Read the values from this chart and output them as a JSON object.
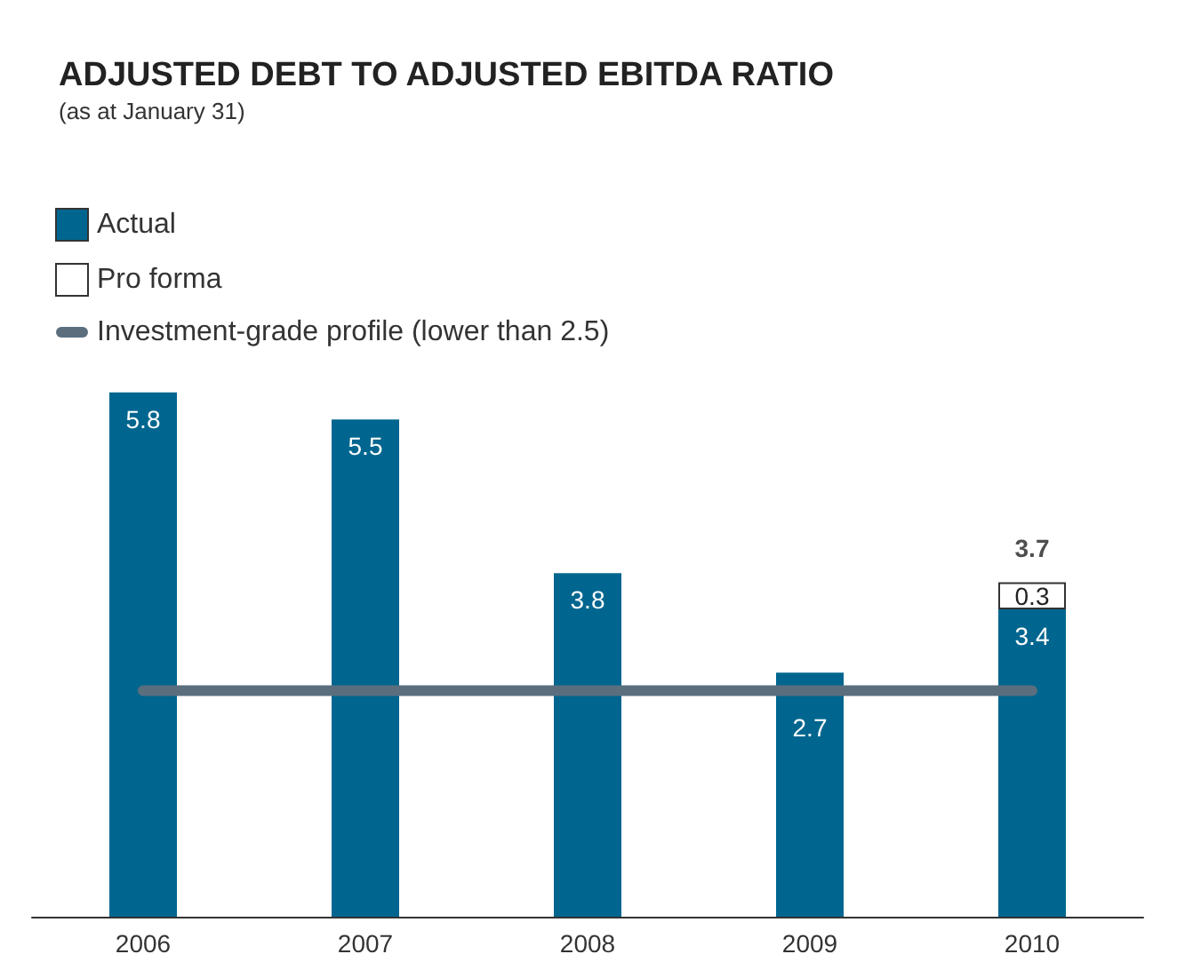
{
  "chart_data": {
    "type": "bar",
    "title": "ADJUSTED DEBT TO ADJUSTED EBITDA RATIO",
    "subtitle": "(as at January 31)",
    "categories": [
      "2006",
      "2007",
      "2008",
      "2009",
      "2010"
    ],
    "stacked": true,
    "series": [
      {
        "name": "Actual",
        "color": "#00668f",
        "values": [
          5.8,
          5.5,
          3.8,
          2.7,
          3.4
        ]
      },
      {
        "name": "Pro forma",
        "color": "#ffffff",
        "values": [
          null,
          null,
          null,
          null,
          0.3
        ]
      }
    ],
    "data_labels": true,
    "totals": [
      null,
      null,
      null,
      null,
      "3.7"
    ],
    "ref_lines": [
      {
        "axis": "y",
        "value": 2.5,
        "label": "Investment-grade profile (lower than 2.5)",
        "color": "#5a6e7e"
      }
    ],
    "legend": "top left",
    "grid": false
  }
}
